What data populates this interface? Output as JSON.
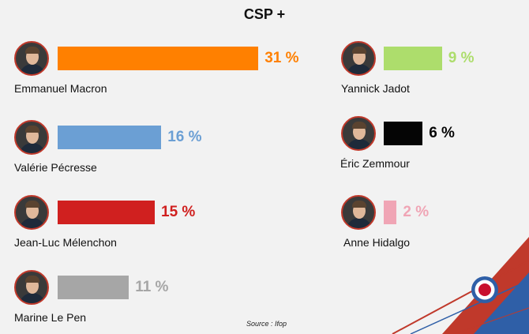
{
  "chart_data": {
    "type": "bar",
    "title": "CSP +",
    "unit": "%",
    "categories": [
      "Emmanuel Macron",
      "Valérie Pécresse",
      "Jean-Luc Mélenchon",
      "Marine Le Pen",
      "Yannick Jadot",
      "Éric Zemmour",
      "Anne Hidalgo"
    ],
    "values": [
      31,
      16,
      15,
      11,
      9,
      6,
      2
    ],
    "value_labels": [
      "31 %",
      "16 %",
      "15 %",
      "11 %",
      "9 %",
      "6 %",
      "2 %"
    ],
    "colors": [
      "#ff8000",
      "#6b9fd4",
      "#d0201f",
      "#a6a6a6",
      "#addd6c",
      "#050505",
      "#f0a5b5"
    ],
    "value_label_colors": [
      "#ff8000",
      "#6b9fd4",
      "#d0201f",
      "#a6a6a6",
      "#addd6c",
      "#050505",
      "#f0a5b5"
    ]
  },
  "source_label": "Source :  Ifop"
}
